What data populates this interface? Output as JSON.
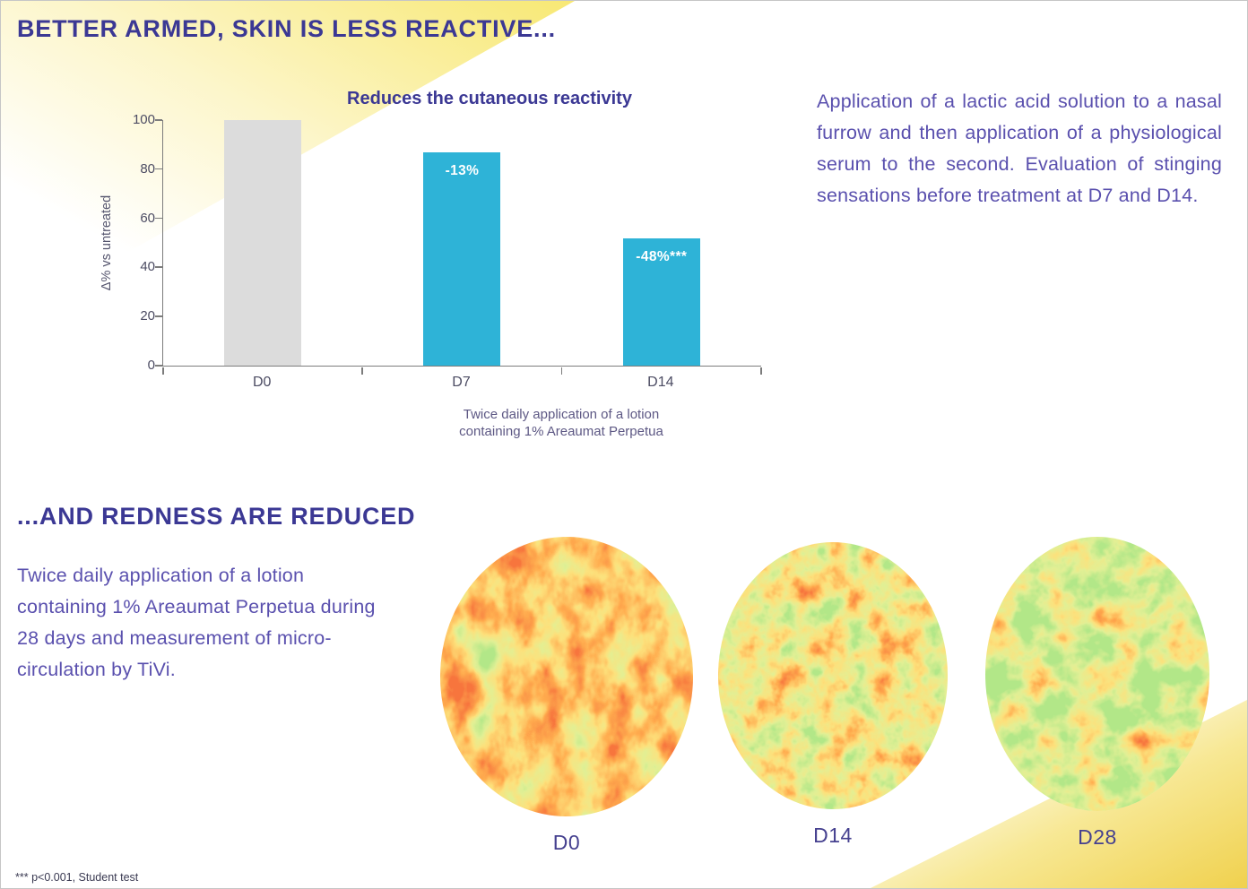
{
  "slide": {
    "title_top": "BETTER ARMED, SKIN IS LESS REACTIVE...",
    "title_bottom": "...AND REDNESS ARE REDUCED",
    "footnote": "*** p<0.001, Student test"
  },
  "colors": {
    "heading_purple": "#3b3894",
    "body_purple": "#5a50ae",
    "bar_cyan": "#2eb3d7",
    "bar_gray": "#dcdcdc",
    "accent_yellow": "#f2d44f"
  },
  "chart_data": {
    "type": "bar",
    "title": "Reduces the cutaneous reactivity",
    "ylabel": "Δ% vs untreated",
    "ylim": [
      0,
      100
    ],
    "yticks": [
      0,
      20,
      40,
      60,
      80,
      100
    ],
    "categories": [
      "D0",
      "D7",
      "D14"
    ],
    "values": [
      100,
      87,
      52
    ],
    "bar_labels": [
      "",
      "-13%",
      "-48%***"
    ],
    "bar_colors": [
      "#dcdcdc",
      "#2eb3d7",
      "#2eb3d7"
    ],
    "caption": [
      "Twice daily application of a lotion",
      "containing 1% Areaumat Perpetua"
    ],
    "grid": false,
    "legend": "none"
  },
  "protocol_text": "Application of a lactic acid solution to a nasal furrow and then application of a physiological serum to the second. Evaluation of stinging sensations before treatment at D7 and D14.",
  "tivi_text": "Twice daily application of a lotion containing 1% Areaumat Perpetua during 28 days and measurement of micro-circulation by TiVi.",
  "tivi_images": [
    {
      "label": "D0",
      "redness": "high"
    },
    {
      "label": "D14",
      "redness": "moderate"
    },
    {
      "label": "D28",
      "redness": "low"
    }
  ]
}
